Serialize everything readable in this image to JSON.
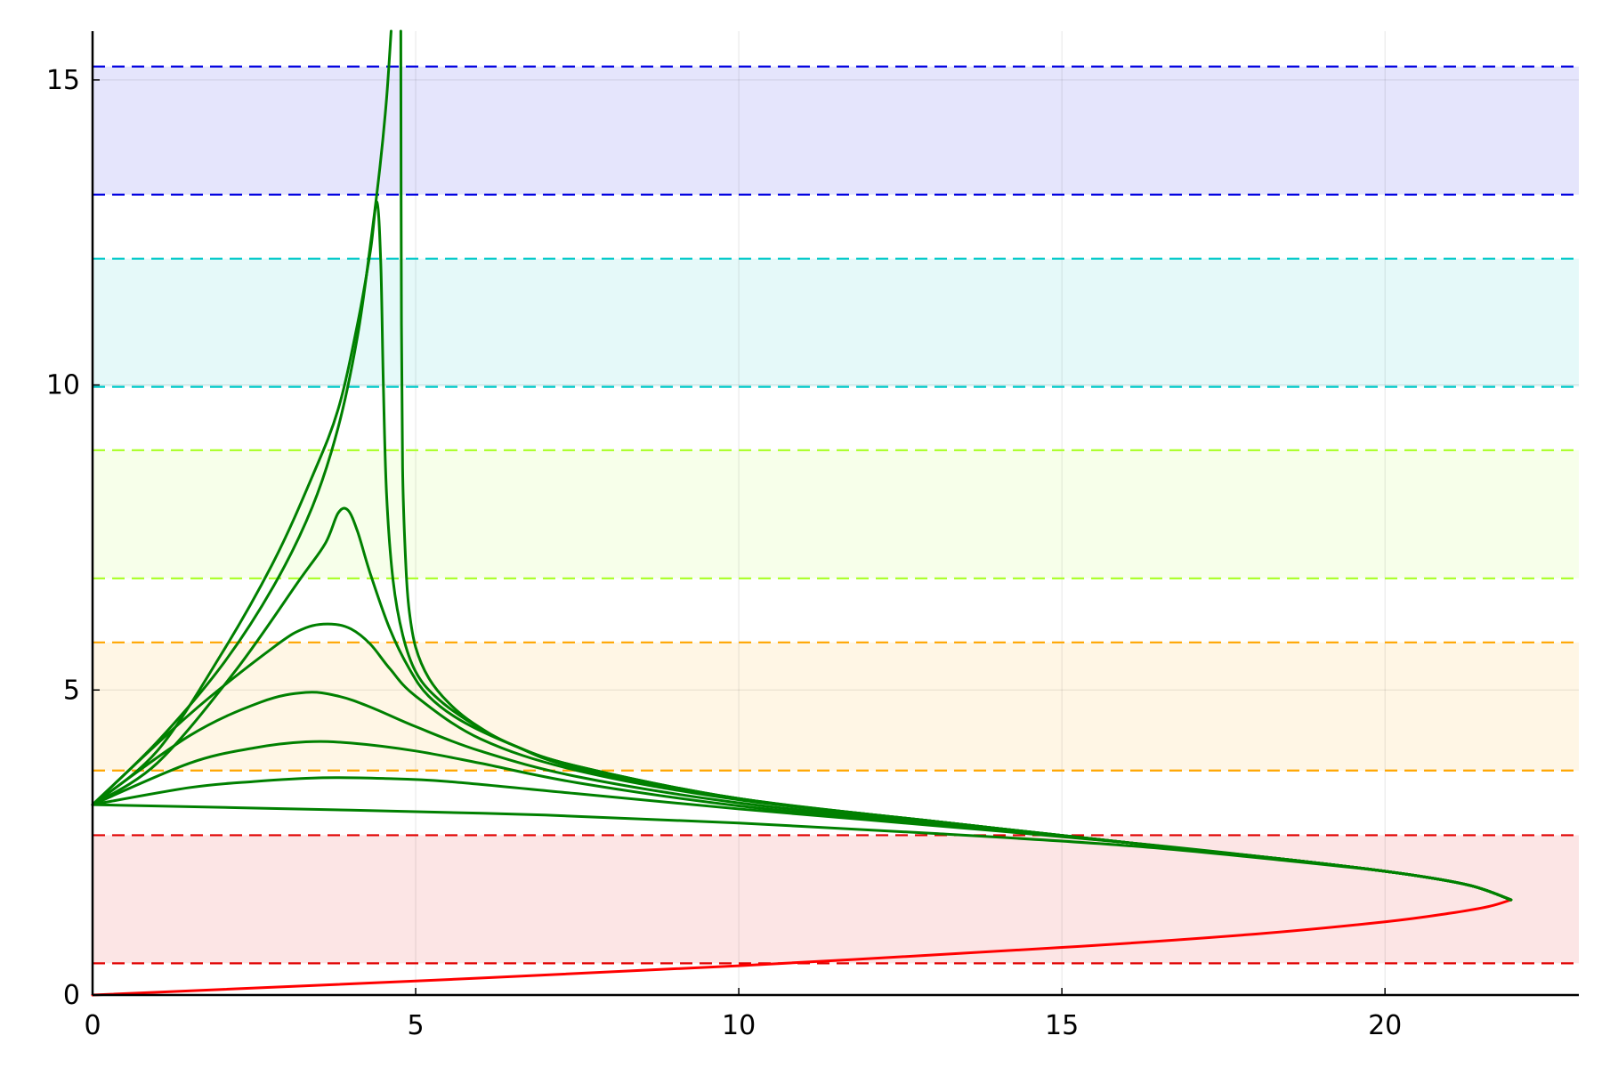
{
  "chart_data": {
    "type": "line",
    "title": "",
    "xlabel": "",
    "ylabel": "",
    "xlim": [
      0,
      23
    ],
    "ylim": [
      0,
      15.8
    ],
    "xticks": [
      "0",
      "5",
      "10",
      "15",
      "20"
    ],
    "yticks": [
      "0",
      "5",
      "10",
      "15"
    ],
    "grid": true,
    "legend": "none",
    "bands": [
      {
        "color": "#e00000",
        "y": [
          0.52,
          2.62
        ]
      },
      {
        "color": "#ffa500",
        "y": [
          3.68,
          5.78
        ]
      },
      {
        "color": "#adff2f",
        "y": [
          6.83,
          8.93
        ]
      },
      {
        "color": "#00c8c8",
        "y": [
          9.97,
          12.07
        ]
      },
      {
        "color": "#0000e0",
        "y": [
          13.12,
          15.22
        ]
      }
    ],
    "series": [
      {
        "color": "#ff0000",
        "x": [
          0,
          5,
          10,
          15,
          18,
          20,
          21,
          21.6,
          21.95
        ],
        "y": [
          0,
          0.23,
          0.48,
          0.78,
          1.0,
          1.2,
          1.34,
          1.45,
          1.56
        ]
      },
      {
        "color": "#008000",
        "x": [
          21.95,
          21.3,
          20.2,
          18.5,
          16,
          13,
          10,
          7,
          4,
          0
        ],
        "y": [
          1.56,
          1.8,
          2.0,
          2.2,
          2.45,
          2.65,
          2.82,
          2.95,
          3.03,
          3.12
        ]
      },
      {
        "color": "#008000",
        "x": [
          21.95,
          21.3,
          20.2,
          18.5,
          16,
          13,
          10,
          7.5,
          5.5,
          4.5,
          3.5,
          2.5,
          1.5,
          0
        ],
        "y": [
          1.56,
          1.8,
          2.0,
          2.22,
          2.5,
          2.78,
          3.05,
          3.3,
          3.5,
          3.55,
          3.56,
          3.5,
          3.4,
          3.12
        ]
      },
      {
        "color": "#008000",
        "x": [
          21.95,
          21.3,
          20.2,
          18.5,
          16,
          13,
          10,
          7.5,
          6,
          5,
          4,
          3.3,
          2.5,
          1.5,
          0
        ],
        "y": [
          1.56,
          1.8,
          2.0,
          2.22,
          2.5,
          2.8,
          3.1,
          3.48,
          3.8,
          4.0,
          4.13,
          4.15,
          4.05,
          3.8,
          3.12
        ]
      },
      {
        "color": "#008000",
        "x": [
          21.95,
          21.3,
          20.2,
          18.5,
          16,
          13,
          10,
          7.5,
          6,
          5,
          4.3,
          3.8,
          3.3,
          2.6,
          1.5,
          0
        ],
        "y": [
          1.56,
          1.8,
          2.0,
          2.22,
          2.5,
          2.82,
          3.15,
          3.58,
          4.0,
          4.4,
          4.72,
          4.9,
          4.96,
          4.8,
          4.25,
          3.12
        ]
      },
      {
        "color": "#008000",
        "x": [
          21.95,
          21.3,
          20.2,
          18.5,
          16,
          13,
          10,
          7.5,
          6,
          5,
          4.6,
          4.3,
          4.0,
          3.7,
          3.3,
          2.8,
          1.5,
          0
        ],
        "y": [
          1.56,
          1.8,
          2.0,
          2.22,
          2.5,
          2.85,
          3.2,
          3.68,
          4.2,
          4.9,
          5.35,
          5.75,
          6.0,
          6.08,
          6.02,
          5.7,
          4.6,
          3.12
        ]
      },
      {
        "color": "#008000",
        "x": [
          21.95,
          21.3,
          20.2,
          18.5,
          16,
          13,
          10,
          7.5,
          6.5,
          5.7,
          5.2,
          4.9,
          4.6,
          4.3,
          4.1,
          3.95,
          3.8,
          3.6,
          3.2,
          2.2,
          1,
          0
        ],
        "y": [
          1.56,
          1.8,
          2.0,
          2.22,
          2.5,
          2.85,
          3.22,
          3.72,
          4.1,
          4.5,
          4.9,
          5.35,
          6.0,
          6.9,
          7.6,
          7.95,
          7.9,
          7.4,
          6.8,
          5.3,
          3.8,
          3.12
        ]
      },
      {
        "color": "#008000",
        "x": [
          21.95,
          21.3,
          20.2,
          18.5,
          16,
          13,
          10,
          7.5,
          6.5,
          5.8,
          5.3,
          5.0,
          4.8,
          4.65,
          4.55,
          4.5,
          4.46,
          4.4,
          4.3,
          4.1,
          3.8,
          3.4,
          2.8,
          2.0,
          1,
          0
        ],
        "y": [
          1.56,
          1.8,
          2.0,
          2.22,
          2.5,
          2.85,
          3.22,
          3.75,
          4.1,
          4.5,
          4.9,
          5.3,
          5.9,
          6.8,
          8.2,
          10.0,
          12.0,
          13.0,
          12.2,
          11.0,
          9.6,
          8.5,
          7.1,
          5.6,
          4.0,
          3.12
        ]
      },
      {
        "color": "#008000",
        "x": [
          21.95,
          21.3,
          20.2,
          18.5,
          16,
          13,
          10,
          7.5,
          6.5,
          5.9,
          5.5,
          5.2,
          5.0,
          4.9,
          4.85,
          4.8,
          4.78,
          4.77
        ],
        "y": [
          1.56,
          1.8,
          2.0,
          2.22,
          2.5,
          2.85,
          3.22,
          3.75,
          4.1,
          4.45,
          4.8,
          5.2,
          5.7,
          6.3,
          7.0,
          8.5,
          11.0,
          15.8
        ]
      },
      {
        "color": "#008000",
        "x": [
          0,
          1,
          2,
          2.8,
          3.4,
          3.8,
          4.1,
          4.3,
          4.45,
          4.55,
          4.62
        ],
        "y": [
          3.12,
          4.15,
          5.4,
          6.7,
          8.0,
          9.3,
          10.8,
          12.3,
          13.6,
          14.7,
          15.8
        ]
      }
    ]
  }
}
